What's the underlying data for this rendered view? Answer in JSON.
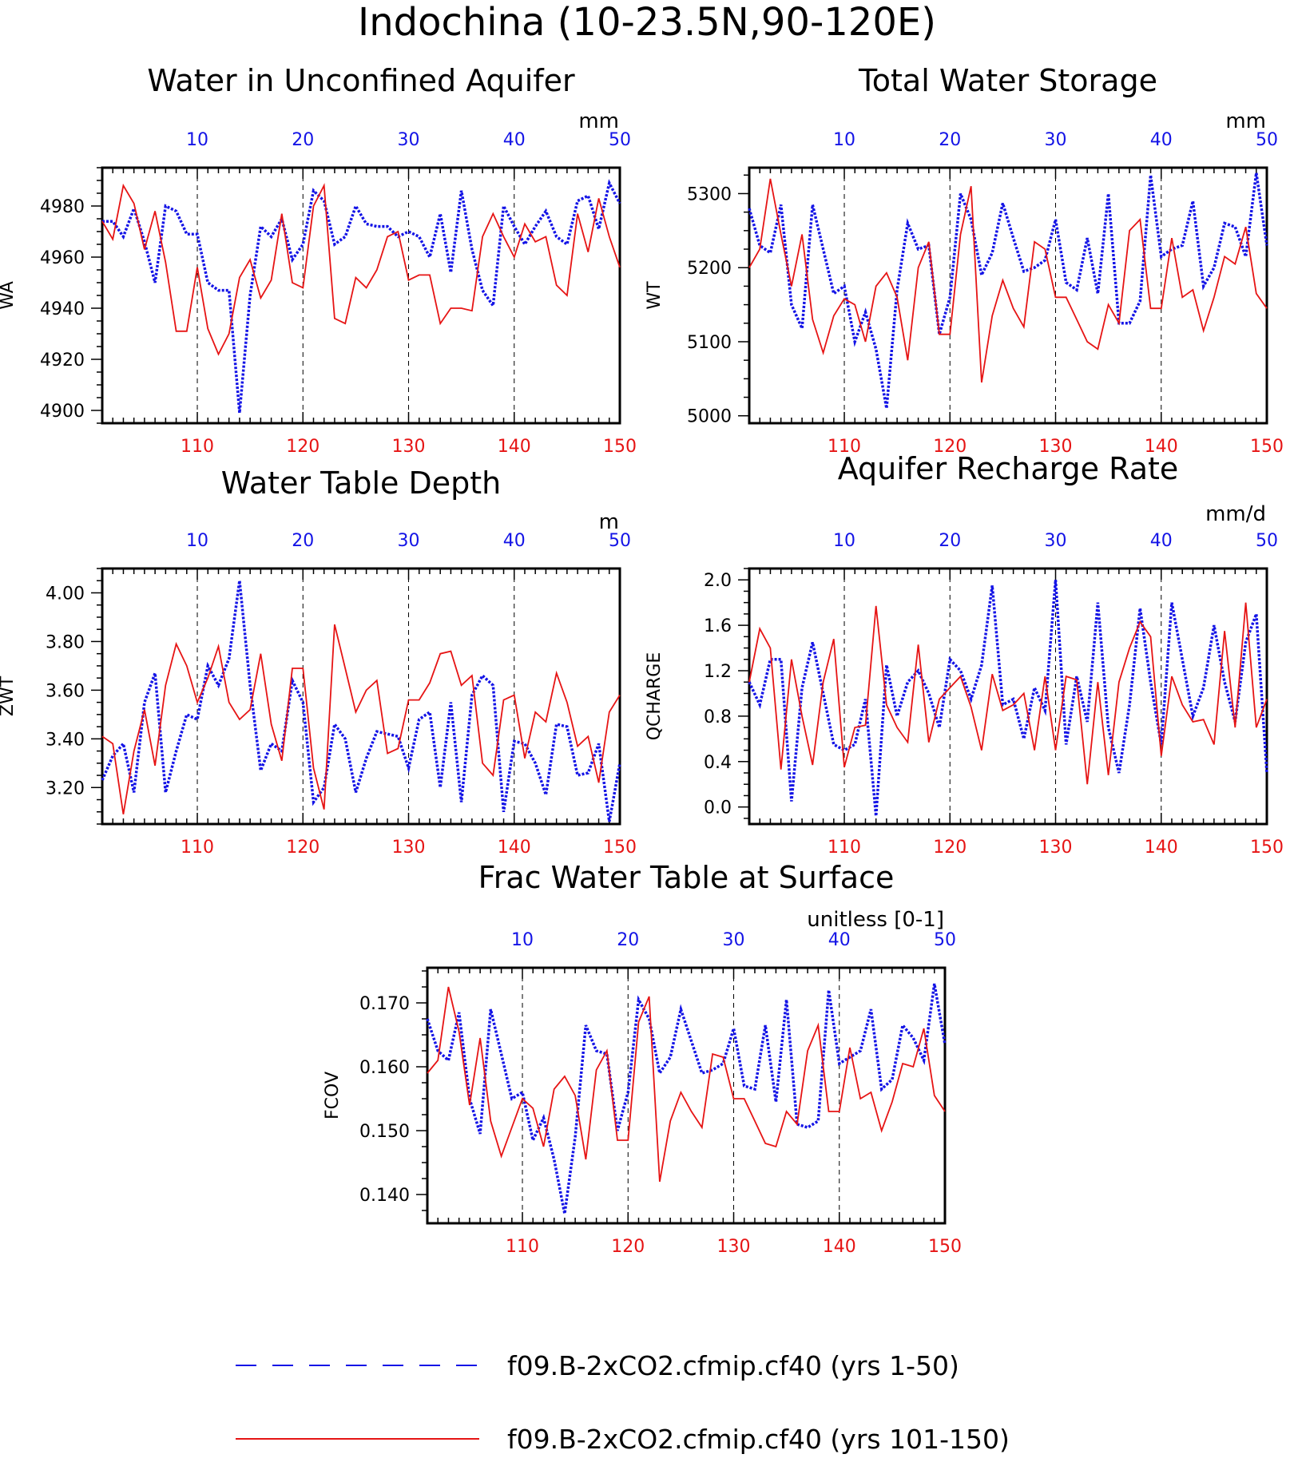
{
  "main_title": "Indochina (10-23.5N,90-120E)",
  "colors": {
    "blue": "#1414e6",
    "red": "#e61414",
    "axis": "#000000"
  },
  "legend": [
    {
      "label": "f09.B-2xCO2.cfmip.cf40 (yrs 1-50)",
      "color": "#1414e6",
      "style": "dashed"
    },
    {
      "label": "f09.B-2xCO2.cfmip.cf40 (yrs 101-150)",
      "color": "#e61414",
      "style": "solid"
    }
  ],
  "chart_data": [
    {
      "type": "line",
      "title": "Water in Unconfined Aquifer",
      "units": "mm",
      "ylabel": "WA",
      "ylim": [
        4895,
        4995
      ],
      "yticks": [
        4900,
        4920,
        4940,
        4960,
        4980
      ],
      "top_axis": {
        "range": [
          1,
          50
        ],
        "ticks": [
          10,
          20,
          30,
          40,
          50
        ]
      },
      "bottom_axis": {
        "range": [
          101,
          150
        ],
        "ticks": [
          110,
          120,
          130,
          140,
          150
        ]
      },
      "grid": "dashed vertical at 10,20,30,40",
      "series": [
        {
          "values": [
            4974,
            4974,
            4968,
            4979,
            4966,
            4950,
            4980,
            4978,
            4969,
            4969,
            4950,
            4947,
            4947,
            4899,
            4945,
            4972,
            4968,
            4975,
            4959,
            4965,
            4986,
            4982,
            4965,
            4968,
            4980,
            4973,
            4972,
            4972,
            4968,
            4970,
            4968,
            4960,
            4977,
            4954,
            4986,
            4963,
            4947,
            4941,
            4980,
            4972,
            4965,
            4972,
            4978,
            4968,
            4965,
            4982,
            4984,
            4971,
            4989,
            4981
          ]
        },
        {
          "values": [
            4974,
            4967,
            4988,
            4981,
            4963,
            4978,
            4958,
            4931,
            4931,
            4956,
            4932,
            4922,
            4930,
            4952,
            4959,
            4944,
            4951,
            4977,
            4950,
            4948,
            4980,
            4988,
            4936,
            4934,
            4952,
            4948,
            4955,
            4968,
            4970,
            4951,
            4953,
            4953,
            4934,
            4940,
            4940,
            4939,
            4968,
            4977,
            4968,
            4960,
            4973,
            4966,
            4968,
            4949,
            4945,
            4977,
            4962,
            4983,
            4968,
            4956
          ]
        }
      ]
    },
    {
      "type": "line",
      "title": "Total Water Storage",
      "units": "mm",
      "ylabel": "WT",
      "ylim": [
        4990,
        5335
      ],
      "yticks": [
        5000,
        5100,
        5200,
        5300
      ],
      "top_axis": {
        "range": [
          1,
          50
        ],
        "ticks": [
          10,
          20,
          30,
          40,
          50
        ]
      },
      "bottom_axis": {
        "range": [
          101,
          150
        ],
        "ticks": [
          110,
          120,
          130,
          140,
          150
        ]
      },
      "grid": "dashed vertical at 10,20,30,40",
      "series": [
        {
          "values": [
            5280,
            5230,
            5220,
            5285,
            5150,
            5118,
            5285,
            5225,
            5165,
            5175,
            5100,
            5140,
            5090,
            5010,
            5170,
            5260,
            5225,
            5230,
            5110,
            5160,
            5300,
            5265,
            5190,
            5220,
            5287,
            5240,
            5195,
            5200,
            5210,
            5265,
            5180,
            5170,
            5240,
            5165,
            5300,
            5125,
            5125,
            5155,
            5325,
            5215,
            5225,
            5230,
            5290,
            5175,
            5200,
            5260,
            5255,
            5215,
            5328,
            5230
          ]
        },
        {
          "values": [
            5200,
            5225,
            5320,
            5245,
            5175,
            5245,
            5130,
            5085,
            5135,
            5158,
            5150,
            5100,
            5175,
            5193,
            5160,
            5075,
            5200,
            5235,
            5110,
            5110,
            5245,
            5310,
            5045,
            5135,
            5183,
            5145,
            5120,
            5235,
            5225,
            5160,
            5160,
            5130,
            5100,
            5090,
            5150,
            5125,
            5250,
            5265,
            5145,
            5145,
            5240,
            5160,
            5170,
            5115,
            5160,
            5215,
            5205,
            5255,
            5165,
            5145
          ]
        }
      ]
    },
    {
      "type": "line",
      "title": "Water Table Depth",
      "units": "m",
      "ylabel": "ZWT",
      "ylim": [
        3.05,
        4.1
      ],
      "yticks": [
        3.2,
        3.4,
        3.6,
        3.8,
        4.0
      ],
      "yticklabels": [
        "3.20",
        "3.40",
        "3.60",
        "3.80",
        "4.00"
      ],
      "top_axis": {
        "range": [
          1,
          50
        ],
        "ticks": [
          10,
          20,
          30,
          40,
          50
        ]
      },
      "bottom_axis": {
        "range": [
          101,
          150
        ],
        "ticks": [
          110,
          120,
          130,
          140,
          150
        ]
      },
      "grid": "dashed vertical at 10,20,30,40",
      "series": [
        {
          "values": [
            3.23,
            3.33,
            3.38,
            3.18,
            3.55,
            3.67,
            3.18,
            3.35,
            3.5,
            3.48,
            3.7,
            3.62,
            3.73,
            4.05,
            3.62,
            3.27,
            3.38,
            3.35,
            3.64,
            3.55,
            3.14,
            3.2,
            3.46,
            3.4,
            3.18,
            3.32,
            3.43,
            3.42,
            3.41,
            3.28,
            3.48,
            3.51,
            3.2,
            3.55,
            3.14,
            3.58,
            3.66,
            3.62,
            3.1,
            3.39,
            3.38,
            3.3,
            3.17,
            3.46,
            3.45,
            3.25,
            3.26,
            3.38,
            3.06,
            3.3
          ]
        },
        {
          "values": [
            3.41,
            3.38,
            3.09,
            3.35,
            3.52,
            3.29,
            3.62,
            3.79,
            3.7,
            3.55,
            3.65,
            3.78,
            3.55,
            3.48,
            3.52,
            3.75,
            3.46,
            3.31,
            3.69,
            3.69,
            3.28,
            3.11,
            3.87,
            3.69,
            3.51,
            3.6,
            3.64,
            3.34,
            3.36,
            3.56,
            3.56,
            3.63,
            3.75,
            3.76,
            3.62,
            3.66,
            3.3,
            3.25,
            3.56,
            3.58,
            3.32,
            3.51,
            3.47,
            3.67,
            3.55,
            3.37,
            3.41,
            3.22,
            3.51,
            3.58
          ]
        }
      ]
    },
    {
      "type": "line",
      "title": "Aquifer Recharge Rate",
      "units": "mm/d",
      "ylabel": "QCHARGE",
      "ylim": [
        -0.15,
        2.1
      ],
      "yticks": [
        0.0,
        0.4,
        0.8,
        1.2,
        1.6,
        2.0
      ],
      "yticklabels": [
        "0.0",
        "0.4",
        "0.8",
        "1.2",
        "1.6",
        "2.0"
      ],
      "top_axis": {
        "range": [
          1,
          50
        ],
        "ticks": [
          10,
          20,
          30,
          40,
          50
        ]
      },
      "bottom_axis": {
        "range": [
          101,
          150
        ],
        "ticks": [
          110,
          120,
          130,
          140,
          150
        ]
      },
      "grid": "dashed vertical at 10,20,30,40",
      "series": [
        {
          "values": [
            1.1,
            0.9,
            1.3,
            1.3,
            0.05,
            1.05,
            1.45,
            1.0,
            0.55,
            0.5,
            0.55,
            0.95,
            -0.08,
            1.25,
            0.8,
            1.1,
            1.2,
            1.0,
            0.7,
            1.3,
            1.2,
            0.95,
            1.25,
            1.95,
            0.9,
            0.95,
            0.6,
            1.05,
            0.85,
            2.0,
            0.55,
            1.15,
            0.75,
            1.8,
            0.7,
            0.3,
            0.9,
            1.75,
            1.1,
            0.55,
            1.8,
            1.3,
            0.8,
            1.05,
            1.6,
            1.1,
            0.75,
            1.45,
            1.7,
            0.3
          ]
        },
        {
          "values": [
            1.1,
            1.57,
            1.4,
            0.33,
            1.3,
            0.8,
            0.37,
            1.1,
            1.48,
            0.35,
            0.7,
            0.72,
            1.77,
            0.9,
            0.7,
            0.57,
            1.43,
            0.57,
            0.95,
            1.05,
            1.15,
            0.88,
            0.5,
            1.17,
            0.85,
            0.9,
            1.0,
            0.5,
            1.15,
            0.5,
            1.15,
            1.12,
            0.2,
            1.1,
            0.28,
            1.1,
            1.4,
            1.63,
            1.5,
            0.45,
            1.15,
            0.9,
            0.75,
            0.77,
            0.55,
            1.55,
            0.7,
            1.8,
            0.7,
            0.95
          ]
        }
      ]
    },
    {
      "type": "line",
      "title": "Frac Water Table at Surface",
      "units": "unitless [0-1]",
      "ylabel": "FCOV",
      "ylim": [
        0.1355,
        0.1755
      ],
      "yticks": [
        0.14,
        0.15,
        0.16,
        0.17
      ],
      "yticklabels": [
        "0.140",
        "0.150",
        "0.160",
        "0.170"
      ],
      "top_axis": {
        "range": [
          1,
          50
        ],
        "ticks": [
          10,
          20,
          30,
          40,
          50
        ]
      },
      "bottom_axis": {
        "range": [
          101,
          150
        ],
        "ticks": [
          110,
          120,
          130,
          140,
          150
        ]
      },
      "grid": "dashed vertical at 10,20,30,40",
      "series": [
        {
          "values": [
            0.1675,
            0.1625,
            0.161,
            0.1685,
            0.155,
            0.1495,
            0.169,
            0.162,
            0.155,
            0.156,
            0.1485,
            0.152,
            0.1455,
            0.137,
            0.149,
            0.1665,
            0.1625,
            0.162,
            0.15,
            0.156,
            0.1705,
            0.1675,
            0.159,
            0.1615,
            0.169,
            0.164,
            0.159,
            0.1595,
            0.1605,
            0.166,
            0.157,
            0.1565,
            0.1665,
            0.1545,
            0.1705,
            0.151,
            0.1505,
            0.1515,
            0.172,
            0.1605,
            0.1615,
            0.1625,
            0.169,
            0.1565,
            0.158,
            0.1665,
            0.1645,
            0.161,
            0.173,
            0.1635
          ]
        },
        {
          "values": [
            0.159,
            0.161,
            0.1725,
            0.1655,
            0.154,
            0.1645,
            0.1515,
            0.146,
            0.1505,
            0.155,
            0.1535,
            0.1475,
            0.1565,
            0.1585,
            0.1555,
            0.1455,
            0.1595,
            0.1625,
            0.1485,
            0.1485,
            0.167,
            0.171,
            0.142,
            0.1515,
            0.156,
            0.153,
            0.1505,
            0.162,
            0.1615,
            0.155,
            0.155,
            0.1515,
            0.148,
            0.1475,
            0.153,
            0.151,
            0.1625,
            0.1665,
            0.153,
            0.153,
            0.163,
            0.155,
            0.156,
            0.15,
            0.1545,
            0.1605,
            0.16,
            0.166,
            0.1555,
            0.153
          ]
        }
      ]
    }
  ]
}
